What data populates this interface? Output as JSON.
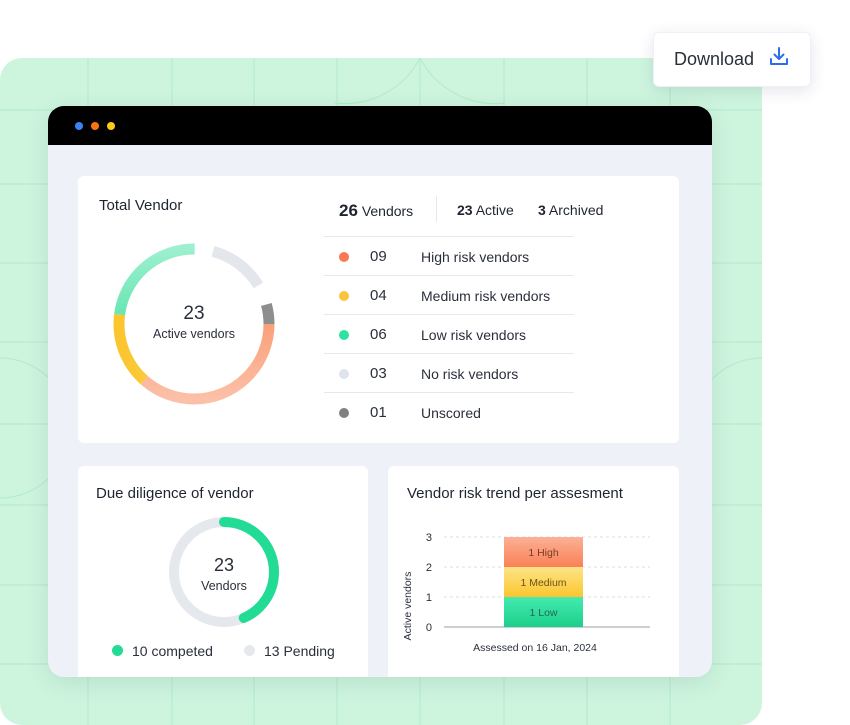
{
  "download_button": {
    "label": "Download",
    "icon": "download-icon"
  },
  "window": {
    "dots": [
      "#3b82f6",
      "#f97316",
      "#facc15"
    ]
  },
  "total_vendor": {
    "title": "Total Vendor",
    "center_value": "23",
    "center_label": "Active vendors",
    "vendors_count": "26",
    "vendors_label": "Vendors",
    "active_count": "23",
    "active_label": "Active",
    "archived_count": "3",
    "archived_label": "Archived",
    "risk_rows": [
      {
        "count": "09",
        "label": "High risk vendors",
        "color": "#f97a52"
      },
      {
        "count": "04",
        "label": "Medium risk vendors",
        "color": "#fac43b"
      },
      {
        "count": "06",
        "label": "Low risk vendors",
        "color": "#2ee3a0"
      },
      {
        "count": "03",
        "label": "No risk vendors",
        "color": "#dfe4ec"
      },
      {
        "count": "01",
        "label": "Unscored",
        "color": "#808080"
      }
    ]
  },
  "due_diligence": {
    "title": "Due diligence of vendor",
    "center_value": "23",
    "center_label": "Vendors",
    "completed_label": "10 competed",
    "pending_label": "13 Pending",
    "completed_value": 10,
    "pending_value": 13,
    "completed_color": "#22dc95",
    "pending_color": "#e5e9ee"
  },
  "trend": {
    "title": "Vendor risk trend per assesment",
    "chart_data": {
      "type": "bar",
      "stacked": true,
      "categories": [
        "Assessed on 16 Jan, 2024"
      ],
      "series": [
        {
          "name": "Low",
          "values": [
            1
          ],
          "label": "1 Low",
          "color": "#22dc95"
        },
        {
          "name": "Medium",
          "values": [
            1
          ],
          "label": "1 Medium",
          "color": "#fbd34d"
        },
        {
          "name": "High",
          "values": [
            1
          ],
          "label": "1 High",
          "color": "#f98c64"
        }
      ],
      "ylabel": "Active vendors",
      "yticks": [
        "0",
        "1",
        "2",
        "3"
      ],
      "ylim": [
        0,
        3
      ],
      "grid": true
    }
  }
}
